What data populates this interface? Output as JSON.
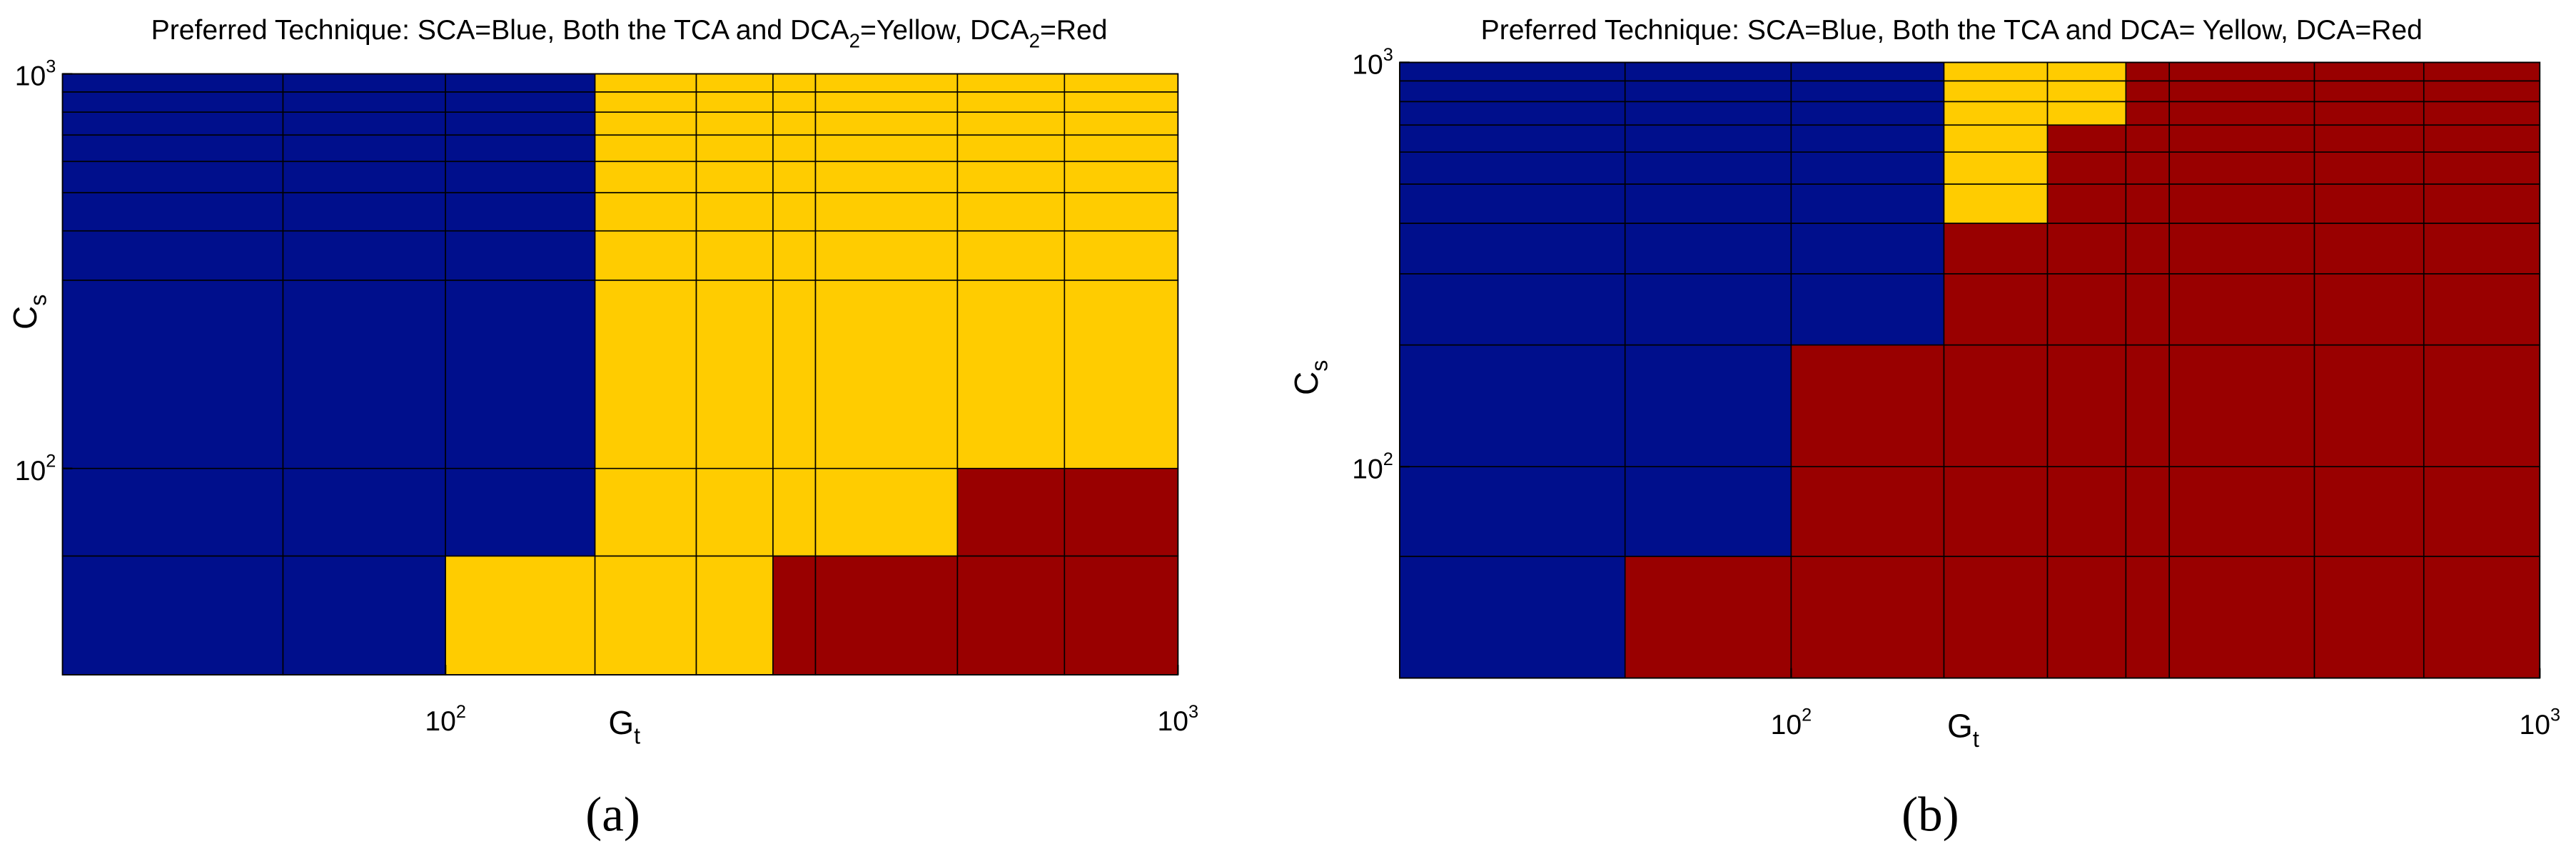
{
  "chart_data": [
    {
      "type": "heatmap",
      "title": [
        "Preferred Technique: SCA=Blue, Both the TCA and DCA",
        "2",
        "=Yellow, DCA",
        "2",
        "=Red"
      ],
      "title_subscripts": [
        1,
        3
      ],
      "xlabel": [
        "G",
        "t"
      ],
      "ylabel": [
        "C",
        "s"
      ],
      "label_subscripts": [
        1
      ],
      "xscale": "log",
      "yscale": "log",
      "xlim": [
        30,
        1000
      ],
      "ylim": [
        30,
        1000
      ],
      "xticks": [
        {
          "value": 100,
          "label": "10",
          "exponent": "2"
        },
        {
          "value": 1000,
          "label": "10",
          "exponent": "3"
        }
      ],
      "yticks": [
        {
          "value": 100,
          "label": "10",
          "exponent": "2"
        },
        {
          "value": 1000,
          "label": "10",
          "exponent": "3"
        }
      ],
      "x_edges": [
        30,
        60,
        100,
        160,
        220,
        280,
        320,
        500,
        700,
        1000
      ],
      "y_edges": [
        30,
        60,
        100,
        300,
        400,
        500,
        600,
        700,
        800,
        900,
        1000
      ],
      "cells": [
        [
          "#000f8c",
          "#000f8c",
          "#ffcc00",
          "#ffcc00",
          "#ffcc00",
          "#990000",
          "#990000",
          "#990000",
          "#990000"
        ],
        [
          "#000f8c",
          "#000f8c",
          "#000f8c",
          "#ffcc00",
          "#ffcc00",
          "#ffcc00",
          "#ffcc00",
          "#990000",
          "#990000"
        ],
        [
          "#000f8c",
          "#000f8c",
          "#000f8c",
          "#ffcc00",
          "#ffcc00",
          "#ffcc00",
          "#ffcc00",
          "#ffcc00",
          "#ffcc00"
        ],
        [
          "#000f8c",
          "#000f8c",
          "#000f8c",
          "#ffcc00",
          "#ffcc00",
          "#ffcc00",
          "#ffcc00",
          "#ffcc00",
          "#ffcc00"
        ],
        [
          "#000f8c",
          "#000f8c",
          "#000f8c",
          "#ffcc00",
          "#ffcc00",
          "#ffcc00",
          "#ffcc00",
          "#ffcc00",
          "#ffcc00"
        ],
        [
          "#000f8c",
          "#000f8c",
          "#000f8c",
          "#ffcc00",
          "#ffcc00",
          "#ffcc00",
          "#ffcc00",
          "#ffcc00",
          "#ffcc00"
        ],
        [
          "#000f8c",
          "#000f8c",
          "#000f8c",
          "#ffcc00",
          "#ffcc00",
          "#ffcc00",
          "#ffcc00",
          "#ffcc00",
          "#ffcc00"
        ],
        [
          "#000f8c",
          "#000f8c",
          "#000f8c",
          "#ffcc00",
          "#ffcc00",
          "#ffcc00",
          "#ffcc00",
          "#ffcc00",
          "#ffcc00"
        ],
        [
          "#000f8c",
          "#000f8c",
          "#000f8c",
          "#ffcc00",
          "#ffcc00",
          "#ffcc00",
          "#ffcc00",
          "#ffcc00",
          "#ffcc00"
        ],
        [
          "#000f8c",
          "#000f8c",
          "#000f8c",
          "#ffcc00",
          "#ffcc00",
          "#ffcc00",
          "#ffcc00",
          "#ffcc00",
          "#ffcc00"
        ]
      ],
      "panel_label": "(a)"
    },
    {
      "type": "heatmap",
      "title": [
        "Preferred Technique: SCA=Blue, Both the TCA and DCA= Yellow, DCA=Red"
      ],
      "title_subscripts": [],
      "xlabel": [
        "G",
        "t"
      ],
      "ylabel": [
        "C",
        "s"
      ],
      "label_subscripts": [
        1
      ],
      "xscale": "log",
      "yscale": "log",
      "xlim": [
        30,
        1000
      ],
      "ylim": [
        30,
        1000
      ],
      "xticks": [
        {
          "value": 100,
          "label": "10",
          "exponent": "2"
        },
        {
          "value": 1000,
          "label": "10",
          "exponent": "3"
        }
      ],
      "yticks": [
        {
          "value": 100,
          "label": "10",
          "exponent": "2"
        },
        {
          "value": 1000,
          "label": "10",
          "exponent": "3"
        }
      ],
      "x_edges": [
        30,
        60,
        100,
        160,
        220,
        280,
        320,
        500,
        700,
        1000
      ],
      "y_edges": [
        30,
        60,
        100,
        200,
        300,
        400,
        500,
        600,
        700,
        800,
        900,
        1000
      ],
      "cells": [
        [
          "#000f8c",
          "#990000",
          "#990000",
          "#990000",
          "#990000",
          "#990000",
          "#990000",
          "#990000",
          "#990000"
        ],
        [
          "#000f8c",
          "#000f8c",
          "#990000",
          "#990000",
          "#990000",
          "#990000",
          "#990000",
          "#990000",
          "#990000"
        ],
        [
          "#000f8c",
          "#000f8c",
          "#990000",
          "#990000",
          "#990000",
          "#990000",
          "#990000",
          "#990000",
          "#990000"
        ],
        [
          "#000f8c",
          "#000f8c",
          "#000f8c",
          "#990000",
          "#990000",
          "#990000",
          "#990000",
          "#990000",
          "#990000"
        ],
        [
          "#000f8c",
          "#000f8c",
          "#000f8c",
          "#990000",
          "#990000",
          "#990000",
          "#990000",
          "#990000",
          "#990000"
        ],
        [
          "#000f8c",
          "#000f8c",
          "#000f8c",
          "#ffcc00",
          "#990000",
          "#990000",
          "#990000",
          "#990000",
          "#990000"
        ],
        [
          "#000f8c",
          "#000f8c",
          "#000f8c",
          "#ffcc00",
          "#990000",
          "#990000",
          "#990000",
          "#990000",
          "#990000"
        ],
        [
          "#000f8c",
          "#000f8c",
          "#000f8c",
          "#ffcc00",
          "#990000",
          "#990000",
          "#990000",
          "#990000",
          "#990000"
        ],
        [
          "#000f8c",
          "#000f8c",
          "#000f8c",
          "#ffcc00",
          "#ffcc00",
          "#990000",
          "#990000",
          "#990000",
          "#990000"
        ],
        [
          "#000f8c",
          "#000f8c",
          "#000f8c",
          "#ffcc00",
          "#ffcc00",
          "#990000",
          "#990000",
          "#990000",
          "#990000"
        ],
        [
          "#000f8c",
          "#000f8c",
          "#000f8c",
          "#ffcc00",
          "#ffcc00",
          "#990000",
          "#990000",
          "#990000",
          "#990000"
        ]
      ],
      "panel_label": "(b)"
    }
  ]
}
